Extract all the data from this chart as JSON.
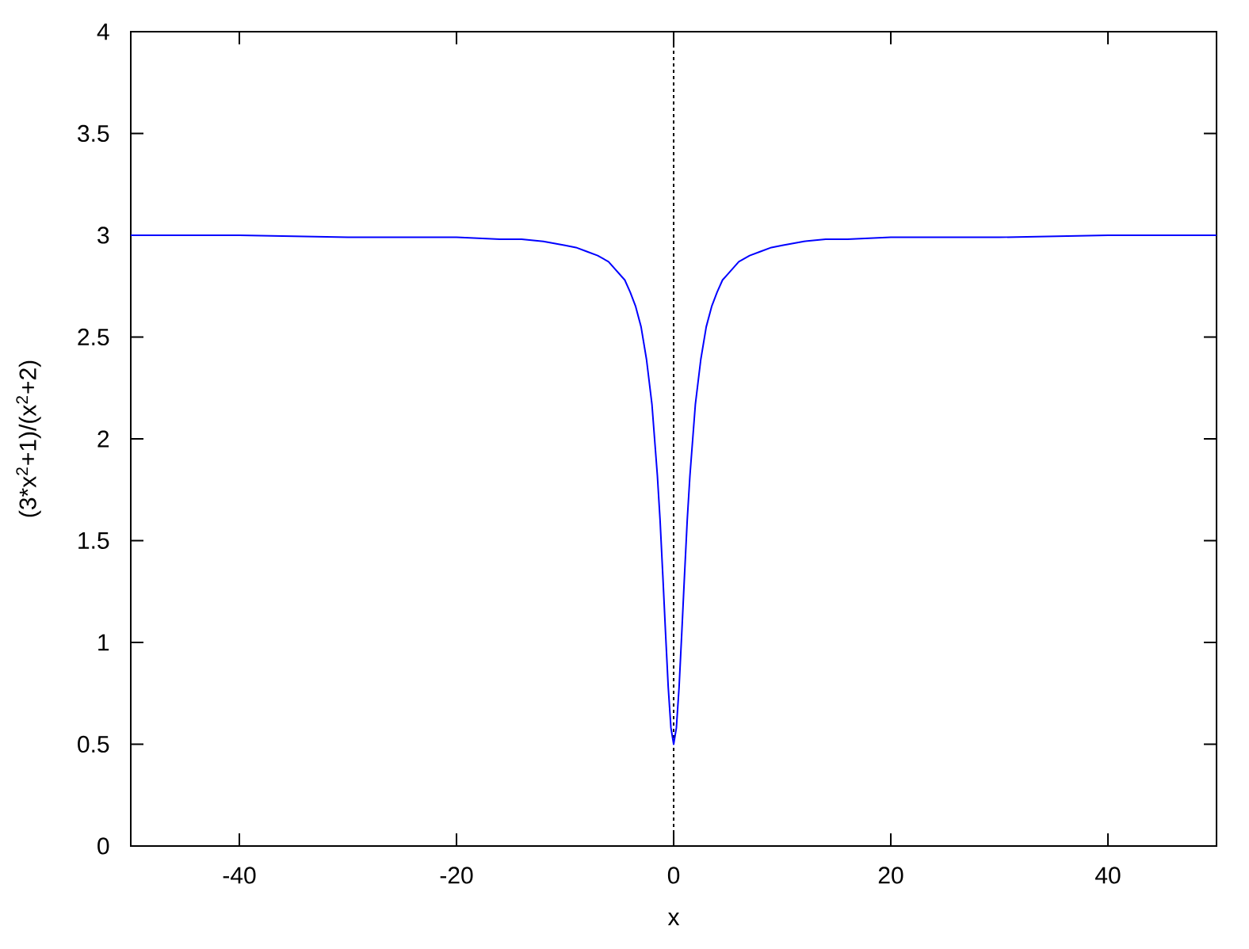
{
  "chart_data": {
    "type": "line",
    "xlabel": "x",
    "ylabel": "(3*x$^{2}$+1)/(x$^{2}$+2)",
    "x": [
      -50,
      -40,
      -30,
      -25,
      -20,
      -16,
      -14,
      -12,
      -10,
      -9,
      -8,
      -7,
      -6,
      -5,
      -4.5,
      -4,
      -3.5,
      -3,
      -2.5,
      -2,
      -1.5,
      -1.25,
      -1,
      -0.75,
      -0.5,
      -0.25,
      0,
      0.25,
      0.5,
      0.75,
      1,
      1.25,
      1.5,
      2,
      2.5,
      3,
      3.5,
      4,
      4.5,
      5,
      6,
      7,
      8,
      9,
      10,
      12,
      14,
      16,
      20,
      25,
      30,
      40,
      50
    ],
    "series": [
      {
        "color": "#0000ff",
        "values": [
          3.0,
          3.0,
          2.99,
          2.99,
          2.99,
          2.98,
          2.98,
          2.97,
          2.95,
          2.94,
          2.92,
          2.9,
          2.87,
          2.81,
          2.78,
          2.72,
          2.65,
          2.55,
          2.39,
          2.17,
          1.82,
          1.6,
          1.33,
          1.05,
          0.78,
          0.58,
          0.5,
          0.58,
          0.78,
          1.05,
          1.33,
          1.6,
          1.82,
          2.17,
          2.39,
          2.55,
          2.65,
          2.72,
          2.78,
          2.81,
          2.87,
          2.9,
          2.92,
          2.94,
          2.95,
          2.97,
          2.98,
          2.98,
          2.99,
          2.99,
          2.99,
          3.0,
          3.0
        ]
      }
    ],
    "xlim": [
      -50,
      50
    ],
    "ylim": [
      0,
      4
    ],
    "xticks": [
      -40,
      -20,
      0,
      20,
      40
    ],
    "yticks": [
      0,
      0.5,
      1,
      1.5,
      2,
      2.5,
      3,
      3.5,
      4
    ],
    "line_style": "solid",
    "ref_lines": [
      {
        "axis": "x",
        "value": 0,
        "color": "#000000",
        "line_style": "dotted"
      }
    ]
  }
}
